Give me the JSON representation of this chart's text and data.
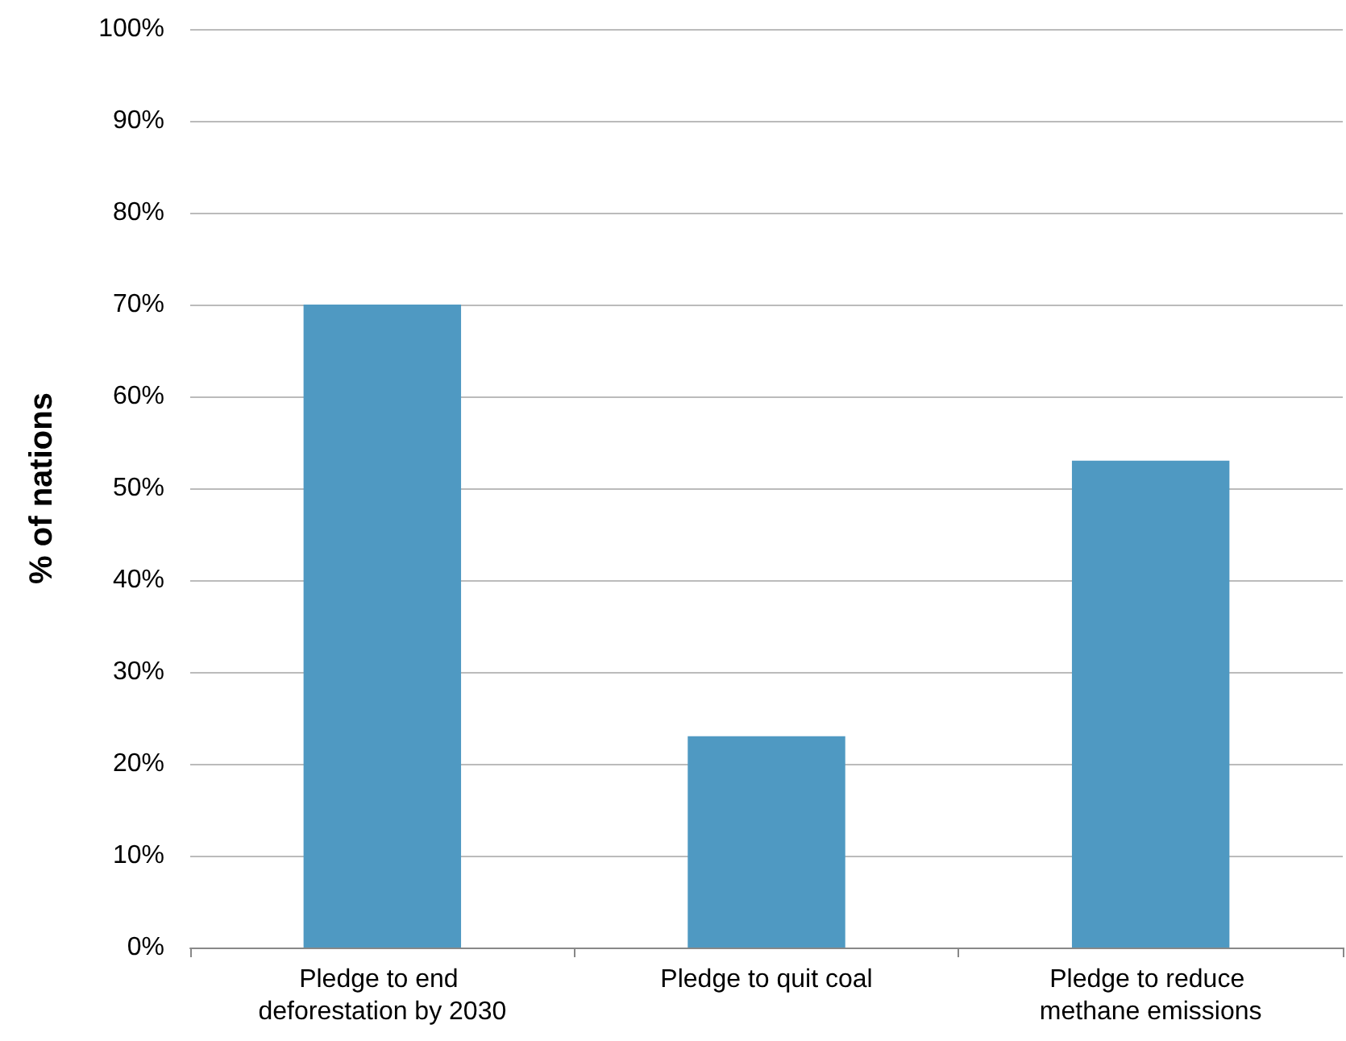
{
  "chart_data": {
    "type": "bar",
    "ylabel": "% of nations",
    "categories": [
      "Pledge to end deforestation by 2030",
      "Pledge to quit coal",
      "Pledge to reduce methane emissions"
    ],
    "values": [
      70,
      23,
      53
    ],
    "color": "#4f99c2",
    "ylim": [
      0,
      100
    ],
    "yticks": [
      {
        "value": 0,
        "label": "0%"
      },
      {
        "value": 10,
        "label": "10%"
      },
      {
        "value": 20,
        "label": "20%"
      },
      {
        "value": 30,
        "label": "30%"
      },
      {
        "value": 40,
        "label": "40%"
      },
      {
        "value": 50,
        "label": "50%"
      },
      {
        "value": 60,
        "label": "60%"
      },
      {
        "value": 70,
        "label": "70%"
      },
      {
        "value": 80,
        "label": "80%"
      },
      {
        "value": 90,
        "label": "90%"
      },
      {
        "value": 100,
        "label": "100%"
      }
    ],
    "grid": "y"
  }
}
